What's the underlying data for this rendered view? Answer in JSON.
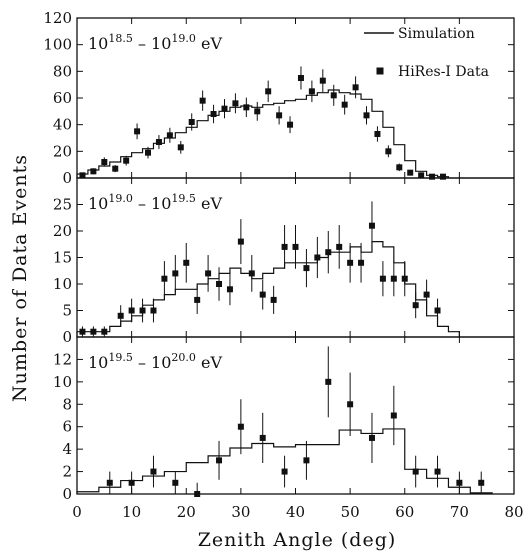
{
  "chart_data": {
    "type": "scatter",
    "xlabel": "Zenith Angle (deg)",
    "ylabel": "Number of Data Events",
    "xlim": [
      0,
      80
    ],
    "x_ticks": [
      "0",
      "10",
      "20",
      "30",
      "40",
      "50",
      "60",
      "70",
      "80"
    ],
    "legend": {
      "placement": "top-right",
      "entries": [
        {
          "label": "Simulation",
          "marker": "line"
        },
        {
          "label": "HiRes-I Data",
          "marker": "square"
        }
      ]
    },
    "panels": [
      {
        "energy_label": {
          "base1": "10",
          "exp1": "18.5",
          "dash": " – ",
          "base2": "10",
          "exp2": "19.0",
          "unit": " eV"
        },
        "ylim": [
          0,
          120
        ],
        "y_ticks": [
          "0",
          "20",
          "40",
          "60",
          "80",
          "100",
          "120"
        ],
        "series": [
          {
            "name": "HiRes-I Data",
            "kind": "points",
            "x": [
              1,
              3,
              5,
              7,
              9,
              11,
              13,
              15,
              17,
              19,
              21,
              23,
              25,
              27,
              29,
              31,
              33,
              35,
              37,
              39,
              41,
              43,
              45,
              47,
              49,
              51,
              53,
              55,
              57,
              59,
              61,
              63,
              65,
              67
            ],
            "y": [
              2,
              5,
              12,
              7,
              13,
              35,
              19,
              27,
              32,
              23,
              42,
              58,
              48,
              52,
              56,
              53,
              50,
              65,
              47,
              40,
              75,
              65,
              73,
              62,
              55,
              68,
              47,
              33,
              20,
              8,
              4,
              2,
              1,
              1
            ]
          },
          {
            "name": "Simulation",
            "kind": "step",
            "edges": [
              0,
              2,
              4,
              6,
              8,
              10,
              12,
              14,
              16,
              18,
              20,
              22,
              24,
              26,
              28,
              30,
              32,
              34,
              36,
              38,
              40,
              42,
              44,
              46,
              48,
              50,
              52,
              54,
              56,
              58,
              60,
              62,
              64,
              66,
              68
            ],
            "values": [
              3,
              6,
              9,
              12,
              16,
              19,
              22,
              26,
              30,
              34,
              38,
              43,
              47,
              50,
              53,
              54,
              53,
              55,
              56,
              58,
              59,
              62,
              64,
              66,
              64,
              63,
              59,
              50,
              38,
              25,
              13,
              5,
              2,
              1
            ]
          }
        ]
      },
      {
        "energy_label": {
          "base1": "10",
          "exp1": "19.0",
          "dash": " – ",
          "base2": "10",
          "exp2": "19.5",
          "unit": " eV"
        },
        "ylim": [
          0,
          30
        ],
        "y_ticks": [
          "0",
          "5",
          "10",
          "15",
          "20",
          "25"
        ],
        "series": [
          {
            "name": "HiRes-I Data",
            "kind": "points",
            "x": [
              1,
              3,
              5,
              8,
              10,
              12,
              14,
              16,
              18,
              20,
              22,
              24,
              26,
              28,
              30,
              32,
              34,
              36,
              38,
              40,
              42,
              44,
              46,
              48,
              50,
              52,
              54,
              56,
              58,
              60,
              62,
              64,
              66
            ],
            "y": [
              1,
              1,
              1,
              4,
              5,
              5,
              5,
              11,
              12,
              14,
              7,
              12,
              10,
              9,
              18,
              12,
              8,
              7,
              17,
              17,
              13,
              15,
              16,
              17,
              14,
              14,
              21,
              11,
              11,
              11,
              6,
              8,
              5
            ]
          },
          {
            "name": "Simulation",
            "kind": "step",
            "edges": [
              0,
              2,
              4,
              6,
              8,
              10,
              12,
              14,
              16,
              18,
              20,
              22,
              24,
              26,
              28,
              30,
              32,
              34,
              36,
              38,
              40,
              42,
              44,
              46,
              48,
              50,
              52,
              54,
              56,
              58,
              60,
              62,
              64,
              66,
              68,
              70
            ],
            "values": [
              1,
              1,
              1,
              2,
              3,
              4,
              6,
              7,
              8,
              9,
              9,
              10,
              11,
              12,
              13,
              12,
              11,
              12,
              13,
              14,
              14,
              14,
              15,
              16,
              16,
              17,
              16,
              18,
              17,
              14,
              10,
              7,
              4,
              2,
              1
            ]
          }
        ]
      },
      {
        "energy_label": {
          "base1": "10",
          "exp1": "19.5",
          "dash": " – ",
          "base2": "10",
          "exp2": "20.0",
          "unit": " eV"
        },
        "ylim": [
          0,
          14
        ],
        "y_ticks": [
          "0",
          "2",
          "4",
          "6",
          "8",
          "10",
          "12"
        ],
        "series": [
          {
            "name": "HiRes-I Data",
            "kind": "points",
            "x": [
              6,
              10,
              14,
              18,
              22,
              26,
              30,
              34,
              38,
              42,
              46,
              50,
              54,
              58,
              62,
              66,
              70,
              74
            ],
            "y": [
              1,
              1,
              2,
              1,
              0,
              3,
              6,
              5,
              2,
              3,
              10,
              8,
              5,
              7,
              2,
              2,
              1,
              1
            ]
          },
          {
            "name": "Simulation",
            "kind": "step",
            "edges": [
              0,
              4,
              8,
              12,
              16,
              20,
              24,
              28,
              32,
              36,
              40,
              44,
              48,
              52,
              56,
              60,
              64,
              68,
              72,
              76
            ],
            "values": [
              0.2,
              0.6,
              1.2,
              1.6,
              2.0,
              2.8,
              3.4,
              4.1,
              4.5,
              4.2,
              4.4,
              4.4,
              5.7,
              5.4,
              5.8,
              2.2,
              1.4,
              0.6,
              0.1
            ]
          }
        ]
      }
    ]
  }
}
